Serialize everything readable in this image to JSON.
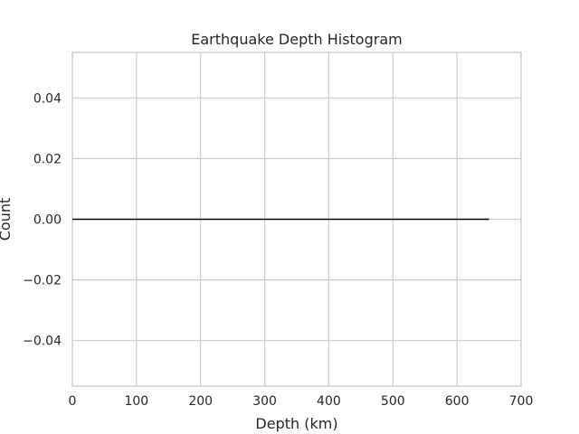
{
  "chart_data": {
    "type": "line",
    "title": "Earthquake Depth Histogram",
    "xlabel": "Depth (km)",
    "ylabel": "Count",
    "xlim": [
      0,
      700
    ],
    "ylim": [
      -0.055,
      0.055
    ],
    "x_ticks": [
      0,
      100,
      200,
      300,
      400,
      500,
      600,
      700
    ],
    "x_tick_labels": [
      "0",
      "100",
      "200",
      "300",
      "400",
      "500",
      "600",
      "700"
    ],
    "y_ticks": [
      -0.04,
      -0.02,
      0.0,
      0.02,
      0.04
    ],
    "y_tick_labels": [
      "−0.04",
      "−0.02",
      "0.00",
      "0.02",
      "0.04"
    ],
    "grid": true,
    "series": [
      {
        "x": [
          0,
          650
        ],
        "values": [
          0,
          0
        ],
        "color": "#000000"
      }
    ]
  }
}
